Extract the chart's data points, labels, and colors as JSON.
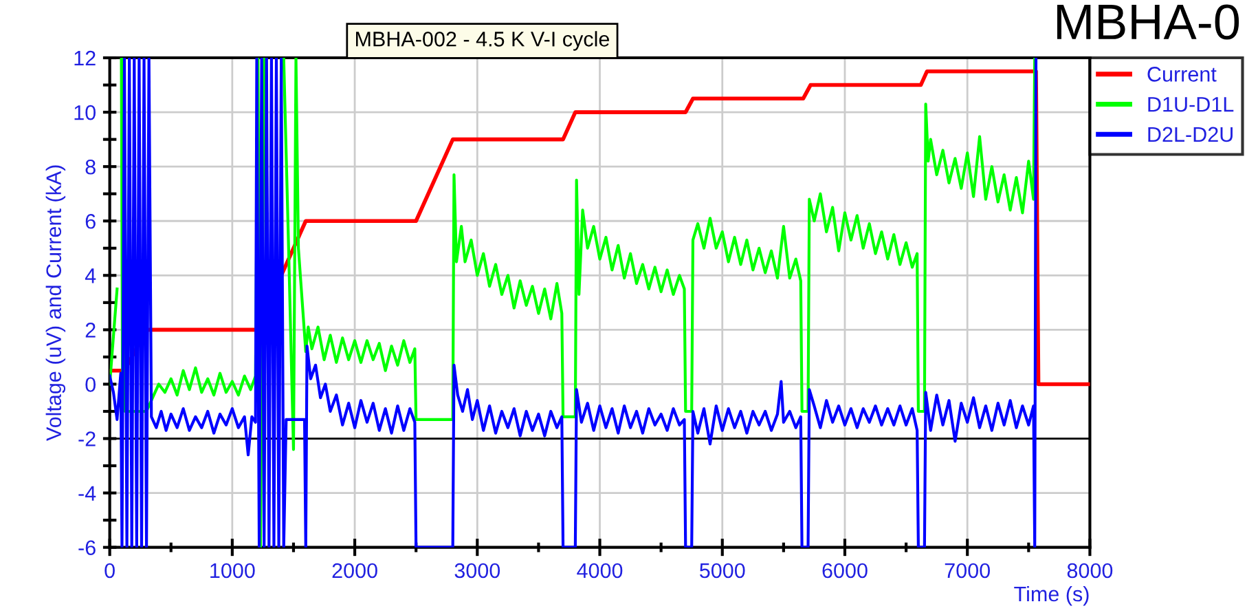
{
  "chart_data": {
    "type": "line",
    "title": "MBHA-002 - 4.5 K V-I cycle",
    "xlabel": "Time (s)",
    "ylabel": "Voltage (uV) and Current (kA)",
    "annotations": [
      "MBHA-0"
    ],
    "xlim": [
      0,
      8000
    ],
    "xticks": [
      0,
      1000,
      2000,
      3000,
      4000,
      5000,
      6000,
      7000,
      8000
    ],
    "ylim": [
      -6,
      12
    ],
    "yticks": [
      -6,
      -4,
      -2,
      0,
      2,
      4,
      6,
      8,
      10,
      12
    ],
    "grid": true,
    "legend": "top right",
    "marker": "none",
    "line_style": "solid",
    "ref_lines": [
      {
        "axis": "y",
        "value": -2,
        "color": "#000000"
      }
    ],
    "series": [
      {
        "name": "Current",
        "color": "#ff0000",
        "x": [
          0,
          120,
          300,
          1200,
          1500,
          1600,
          2500,
          2800,
          3700,
          3800,
          4700,
          4760,
          5660,
          5720,
          6620,
          6670,
          7560,
          7580,
          8000
        ],
        "values": [
          0.5,
          0.5,
          2,
          2,
          5,
          6,
          6,
          9,
          9,
          10,
          10,
          10.5,
          10.5,
          11,
          11,
          11.5,
          11.5,
          0,
          0
        ]
      },
      {
        "name": "D1U-D1L",
        "color": "#00ff00",
        "x": [
          0,
          60,
          75,
          95,
          105,
          115,
          125,
          300,
          350,
          400,
          450,
          500,
          550,
          600,
          650,
          700,
          750,
          800,
          850,
          900,
          950,
          1000,
          1050,
          1100,
          1150,
          1190,
          1210,
          1230,
          1260,
          1300,
          1340,
          1380,
          1420,
          1460,
          1500,
          1520,
          1540,
          1600,
          1620,
          1650,
          1700,
          1750,
          1800,
          1850,
          1900,
          1950,
          2000,
          2050,
          2100,
          2150,
          2200,
          2250,
          2300,
          2350,
          2400,
          2450,
          2490,
          2500,
          2800,
          2810,
          2830,
          2870,
          2900,
          2950,
          3000,
          3050,
          3100,
          3150,
          3200,
          3250,
          3300,
          3350,
          3400,
          3450,
          3500,
          3550,
          3600,
          3650,
          3690,
          3700,
          3800,
          3810,
          3830,
          3860,
          3900,
          3950,
          4000,
          4050,
          4100,
          4150,
          4200,
          4250,
          4300,
          4350,
          4400,
          4450,
          4500,
          4550,
          4600,
          4650,
          4690,
          4700,
          4750,
          4760,
          4800,
          4850,
          4900,
          4950,
          5000,
          5050,
          5100,
          5150,
          5200,
          5250,
          5300,
          5350,
          5400,
          5450,
          5500,
          5550,
          5600,
          5640,
          5650,
          5700,
          5710,
          5750,
          5800,
          5850,
          5900,
          5950,
          6000,
          6050,
          6100,
          6150,
          6200,
          6250,
          6300,
          6350,
          6400,
          6450,
          6500,
          6550,
          6590,
          6600,
          6650,
          6660,
          6680,
          6700,
          6750,
          6800,
          6850,
          6900,
          6950,
          7000,
          7050,
          7100,
          7150,
          7200,
          7250,
          7300,
          7350,
          7400,
          7450,
          7500,
          7540,
          7550
        ],
        "values": [
          0,
          3.5,
          null,
          12,
          -1,
          12,
          -1,
          -1,
          -0.5,
          0,
          -0.3,
          0.2,
          -0.4,
          0.5,
          -0.2,
          0.6,
          -0.3,
          0.2,
          -0.4,
          0.4,
          -0.3,
          0.1,
          -0.4,
          0.3,
          -0.2,
          0.3,
          12,
          -6,
          12,
          null,
          null,
          null,
          12,
          5,
          -2.4,
          12,
          5,
          1.2,
          2.1,
          1.3,
          2.1,
          0.9,
          1.8,
          0.8,
          1.7,
          0.9,
          1.6,
          0.8,
          1.6,
          0.9,
          1.5,
          0.5,
          1.4,
          0.7,
          1.6,
          0.8,
          1.3,
          -1.3,
          -1.3,
          7.7,
          4.5,
          5.8,
          4.5,
          5.3,
          4,
          4.8,
          3.6,
          4.4,
          3.3,
          4,
          2.8,
          3.8,
          2.9,
          3.6,
          2.6,
          3.5,
          2.4,
          3.7,
          2.6,
          -1.2,
          -1.2,
          7.5,
          3.3,
          6.4,
          5,
          5.8,
          4.6,
          5.4,
          4.2,
          5.1,
          3.9,
          4.8,
          3.7,
          4.4,
          3.5,
          4.3,
          3.4,
          4.2,
          3.3,
          4,
          3.5,
          -1,
          -1,
          5.3,
          5.9,
          5,
          6.1,
          5,
          5.6,
          4.5,
          5.4,
          4.4,
          5.3,
          4.2,
          5,
          4.1,
          4.9,
          3.9,
          5.8,
          3.9,
          4.6,
          3.8,
          -1,
          -1,
          6.8,
          6,
          7,
          5.6,
          6.5,
          4.9,
          6.3,
          5.3,
          6.2,
          5,
          5.9,
          4.8,
          5.6,
          4.6,
          5.5,
          4.4,
          5.2,
          4.3,
          4.8,
          -1,
          -1,
          10.3,
          8.2,
          9,
          7.7,
          8.6,
          7.4,
          8.3,
          7.2,
          8.5,
          6.9,
          9.1,
          6.8,
          8,
          6.7,
          7.7,
          6.4,
          7.6,
          6.3,
          8.2,
          6.8,
          12
        ]
      },
      {
        "name": "D2L-D2U",
        "color": "#0000ff",
        "x": [
          0,
          30,
          60,
          90,
          100,
          120,
          140,
          160,
          180,
          200,
          220,
          240,
          260,
          280,
          300,
          320,
          340,
          380,
          420,
          460,
          500,
          550,
          600,
          650,
          700,
          750,
          800,
          850,
          900,
          950,
          1000,
          1050,
          1100,
          1130,
          1160,
          1190,
          1200,
          1220,
          1240,
          1260,
          1280,
          1300,
          1320,
          1340,
          1360,
          1380,
          1400,
          1420,
          1440,
          1500,
          1590,
          1600,
          1610,
          1640,
          1680,
          1720,
          1760,
          1800,
          1850,
          1900,
          1950,
          2000,
          2050,
          2100,
          2150,
          2200,
          2250,
          2300,
          2350,
          2400,
          2450,
          2490,
          2500,
          2800,
          2810,
          2840,
          2880,
          2920,
          2960,
          3000,
          3050,
          3100,
          3150,
          3200,
          3250,
          3300,
          3350,
          3400,
          3450,
          3500,
          3550,
          3600,
          3650,
          3690,
          3700,
          3800,
          3810,
          3850,
          3900,
          3950,
          4000,
          4050,
          4100,
          4150,
          4200,
          4250,
          4300,
          4350,
          4400,
          4450,
          4500,
          4550,
          4600,
          4650,
          4690,
          4700,
          4750,
          4760,
          4800,
          4850,
          4900,
          4950,
          5000,
          5050,
          5100,
          5150,
          5200,
          5250,
          5300,
          5350,
          5400,
          5450,
          5480,
          5500,
          5550,
          5600,
          5640,
          5650,
          5700,
          5710,
          5750,
          5800,
          5850,
          5900,
          5950,
          6000,
          6050,
          6100,
          6150,
          6200,
          6250,
          6300,
          6350,
          6400,
          6450,
          6500,
          6550,
          6590,
          6600,
          6650,
          6660,
          6700,
          6750,
          6800,
          6850,
          6900,
          6950,
          7000,
          7050,
          7100,
          7150,
          7200,
          7250,
          7300,
          7350,
          7400,
          7450,
          7500,
          7540,
          7550,
          7560
        ],
        "values": [
          0.3,
          -0.3,
          -1.3,
          0.4,
          -6,
          12,
          -6,
          12,
          -6,
          12,
          -6,
          12,
          -6,
          12,
          -6,
          12,
          -1.2,
          -1.6,
          -1,
          -1.7,
          -1.1,
          -1.6,
          -0.9,
          -1.7,
          -1.2,
          -1.6,
          -1,
          -1.8,
          -1.1,
          -1.5,
          -0.9,
          -1.6,
          -1.2,
          -2.6,
          -1.2,
          -1.4,
          12,
          -6,
          12,
          -6,
          12,
          -6,
          12,
          -6,
          12,
          -6,
          12,
          -6,
          -1.3,
          -1.3,
          -1.3,
          -6,
          1.4,
          0.2,
          0.7,
          -0.5,
          0,
          -1,
          -0.4,
          -1.5,
          -0.7,
          -1.6,
          -0.6,
          -1.4,
          -0.7,
          -1.7,
          -0.9,
          -1.8,
          -0.8,
          -1.7,
          -0.9,
          -1.4,
          -6,
          -6,
          0.7,
          -0.4,
          -1,
          -0.2,
          -1.3,
          -0.6,
          -1.7,
          -0.8,
          -1.8,
          -1,
          -1.6,
          -0.9,
          -1.9,
          -1,
          -1.7,
          -1.1,
          -1.9,
          -1,
          -1.6,
          -1.2,
          -6,
          -6,
          -0.2,
          -1.4,
          -0.7,
          -1.7,
          -0.8,
          -1.6,
          -0.9,
          -1.8,
          -0.8,
          -1.6,
          -1,
          -1.8,
          -0.9,
          -1.5,
          -1.1,
          -1.7,
          -0.9,
          -1.5,
          -1.3,
          -6,
          -6,
          -1,
          -1.8,
          -0.9,
          -2.2,
          -0.8,
          -1.7,
          -0.9,
          -1.6,
          -1,
          -1.8,
          -1,
          -1.5,
          -1,
          -1.7,
          -1.1,
          0.1,
          -1.4,
          -1,
          -1.6,
          -1.2,
          -6,
          -6,
          -0.2,
          -0.8,
          -1.6,
          -0.6,
          -1.4,
          -0.8,
          -1.5,
          -0.9,
          -1.6,
          -0.9,
          -1.4,
          -0.8,
          -1.5,
          -0.9,
          -1.5,
          -0.8,
          -1.5,
          -0.9,
          -1.7,
          -6,
          -6,
          -0.3,
          -1.7,
          -0.4,
          -1.5,
          -0.6,
          -2.1,
          -0.7,
          -1.4,
          -0.5,
          -1.6,
          -0.8,
          -1.7,
          -0.7,
          -1.5,
          -0.6,
          -1.6,
          -0.8,
          -1.5,
          -0.8,
          -6,
          12
        ]
      }
    ]
  }
}
